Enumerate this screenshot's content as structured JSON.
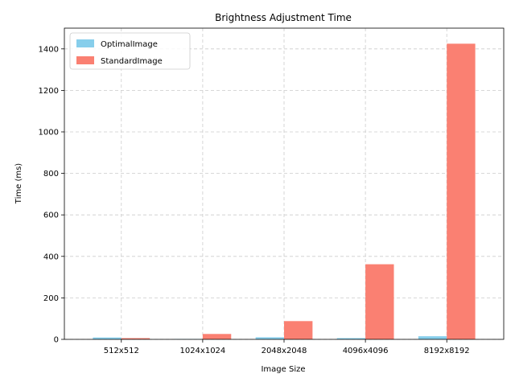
{
  "chart_data": {
    "type": "bar",
    "title": "Brightness Adjustment Time",
    "xlabel": "Image Size",
    "ylabel": "Time (ms)",
    "categories": [
      "512x512",
      "1024x1024",
      "2048x2048",
      "4096x4096",
      "8192x8192"
    ],
    "series": [
      {
        "name": "OptimalImage",
        "color": "#87ceeb",
        "values": [
          9,
          2,
          10,
          6,
          15
        ]
      },
      {
        "name": "StandardImage",
        "color": "#fa8072",
        "values": [
          6,
          26,
          88,
          362,
          1425
        ]
      }
    ],
    "ylim": [
      0,
      1500
    ],
    "yticks": [
      0,
      200,
      400,
      600,
      800,
      1000,
      1200,
      1400
    ],
    "grid": true,
    "legend_position": "top-left"
  }
}
